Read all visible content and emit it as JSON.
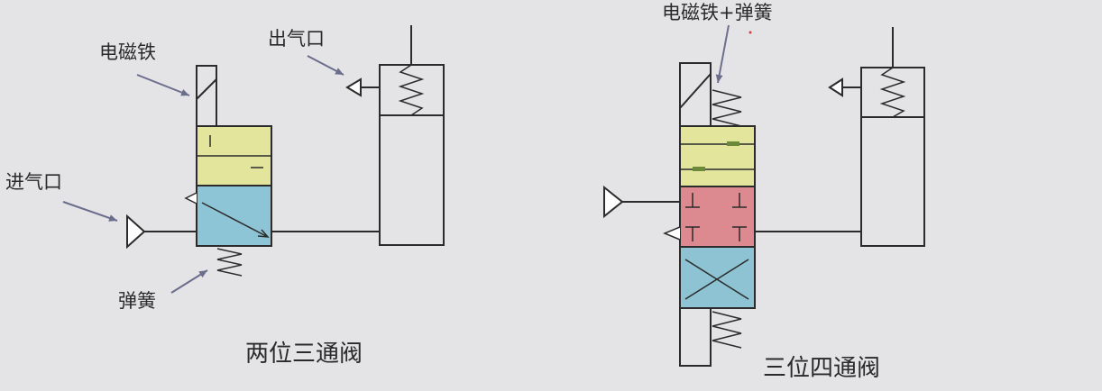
{
  "colors": {
    "background": "#e4e3e6",
    "line": "#2b2b2b",
    "arrow": "#6b6d8c",
    "yellow_block": "#e3e59c",
    "blue_block": "#8ec5d6",
    "red_block": "#dc8a90",
    "blue_block_lower": "#8dc3d2",
    "pin_green": "#6a8a3a"
  },
  "left_diagram": {
    "label_solenoid": "电磁铁",
    "label_outlet": "出气口",
    "label_inlet": "进气口",
    "label_spring": "弹簧",
    "title": "两位三通阀"
  },
  "right_diagram": {
    "label_solenoid_spring": "电磁铁+弹簧",
    "title": "三位四通阀"
  }
}
